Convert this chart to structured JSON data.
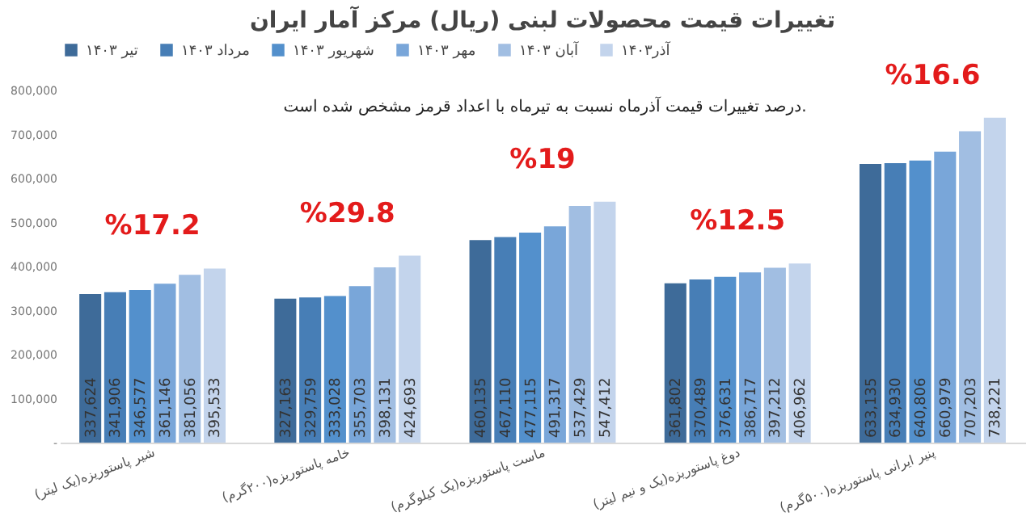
{
  "chart_data": {
    "type": "bar",
    "title": "تغییرات قیمت محصولات لبنی (ریال) مرکز آمار ایران",
    "categories": [
      "شیر پاستوریزه(یک لیتر)",
      "خامه پاستوریزه(۲۰۰گرم)",
      "ماست پاستوریزه(یک کیلوگرم)",
      "دوغ پاستوریزه(یک و نیم لیتر)",
      "پنیر ایرانی پاستوریزه(۵۰۰گرم)"
    ],
    "series": [
      {
        "name": "تیر ۱۴۰۳",
        "color": "#3e6b99",
        "values": [
          337624,
          327163,
          460135,
          361802,
          633135
        ],
        "value_labels": [
          "337,624",
          "327,163",
          "460,135",
          "361,802",
          "633,135"
        ]
      },
      {
        "name": "مرداد ۱۴۰۳",
        "color": "#477eb6",
        "values": [
          341906,
          329759,
          467110,
          370489,
          634930
        ],
        "value_labels": [
          "341,906",
          "329,759",
          "467,110",
          "370,489",
          "634,930"
        ]
      },
      {
        "name": "شهریور ۱۴۰۳",
        "color": "#5390cc",
        "values": [
          346577,
          333028,
          477115,
          376631,
          640806
        ],
        "value_labels": [
          "346,577",
          "333,028",
          "477,115",
          "376,631",
          "640,806"
        ]
      },
      {
        "name": "مهر ۱۴۰۳",
        "color": "#79a6d9",
        "values": [
          361146,
          355703,
          491317,
          386717,
          660979
        ],
        "value_labels": [
          "361,146",
          "355,703",
          "491,317",
          "386,717",
          "660,979"
        ]
      },
      {
        "name": "آبان ۱۴۰۳",
        "color": "#a1bee2",
        "values": [
          381056,
          398131,
          537429,
          397212,
          707203
        ],
        "value_labels": [
          "381,056",
          "398,131",
          "537,429",
          "397,212",
          "707,203"
        ]
      },
      {
        "name": "آذر۱۴۰۳",
        "color": "#c3d4ec",
        "values": [
          395533,
          424693,
          547412,
          406962,
          738221
        ],
        "value_labels": [
          "395,533",
          "424,693",
          "547,412",
          "406,962",
          "738,221"
        ]
      }
    ],
    "ylim": [
      0,
      800000
    ],
    "yticks": [
      {
        "value": 0,
        "label": "-"
      },
      {
        "value": 100000,
        "label": "100,000"
      },
      {
        "value": 200000,
        "label": "200,000"
      },
      {
        "value": 300000,
        "label": "300,000"
      },
      {
        "value": 400000,
        "label": "400,000"
      },
      {
        "value": 500000,
        "label": "500,000"
      },
      {
        "value": 600000,
        "label": "600,000"
      },
      {
        "value": 700000,
        "label": "700,000"
      },
      {
        "value": 800000,
        "label": "800,000"
      }
    ],
    "grid": false,
    "legend": "top",
    "annotations": [
      "درصد تغییرات قیمت آذرماه نسبت به تیرماه با اعداد قرمز مشخص شده است.",
      "%17.2",
      "%29.8",
      "%19",
      "%12.5",
      "%16.6"
    ]
  }
}
